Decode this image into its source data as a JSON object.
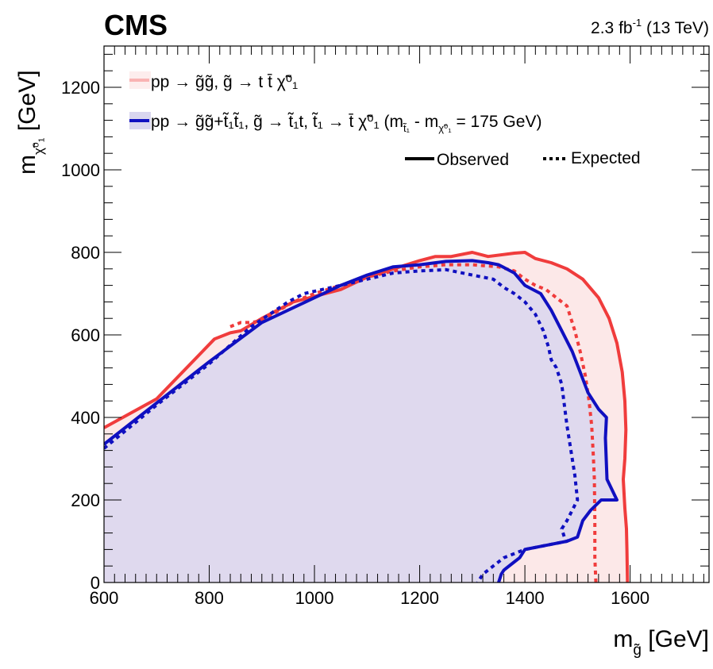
{
  "header": {
    "experiment": "CMS",
    "lumi_value": "2.3 fb",
    "lumi_exp": "-1",
    "energy": "(13 TeV)"
  },
  "axes": {
    "x_title": "m",
    "x_sub": "g̃",
    "x_unit": "[GeV]",
    "y_title": "m",
    "y_sub": "χ̃⁰₁",
    "y_unit": "[GeV]"
  },
  "legend": {
    "red_label": "pp → g̃g̃, g̃ → t t̄ χ̃⁰₁",
    "blue_label": "pp → g̃g̃+t̃₁t̃₁, g̃ → t̃₁t,  t̃₁ → t̄ χ̃⁰₁   (m",
    "blue_mass_a": "t̃₁",
    "blue_mass_mid": " - m",
    "blue_mass_b": "χ̃⁰₁",
    "blue_mass_end": " = 175 GeV)",
    "observed": "Observed",
    "expected": "Expected"
  },
  "chart_data": {
    "type": "line",
    "xlim": [
      600,
      1750
    ],
    "ylim": [
      0,
      1300
    ],
    "x_ticks": [
      600,
      800,
      1000,
      1200,
      1400,
      1600
    ],
    "y_ticks": [
      0,
      200,
      400,
      600,
      800,
      1000,
      1200
    ],
    "xlabel": "m_g̃ [GeV]",
    "ylabel": "m_χ̃⁰₁ [GeV]",
    "colors": {
      "red": "#f03c3c",
      "blue": "#1010c0",
      "red_fill": "#fce6e6",
      "blue_fill": "#d9d6ef"
    },
    "series": [
      {
        "name": "pp → g̃g̃, g̃ → t t̄ χ̃⁰₁",
        "kind": "observed",
        "color": "red",
        "points": [
          [
            600,
            375
          ],
          [
            700,
            445
          ],
          [
            810,
            590
          ],
          [
            840,
            605
          ],
          [
            860,
            610
          ],
          [
            900,
            640
          ],
          [
            960,
            680
          ],
          [
            1050,
            710
          ],
          [
            1100,
            740
          ],
          [
            1150,
            760
          ],
          [
            1200,
            780
          ],
          [
            1230,
            790
          ],
          [
            1260,
            790
          ],
          [
            1300,
            800
          ],
          [
            1330,
            790
          ],
          [
            1380,
            798
          ],
          [
            1400,
            800
          ],
          [
            1420,
            785
          ],
          [
            1450,
            775
          ],
          [
            1480,
            760
          ],
          [
            1510,
            735
          ],
          [
            1540,
            690
          ],
          [
            1560,
            640
          ],
          [
            1575,
            580
          ],
          [
            1585,
            510
          ],
          [
            1590,
            440
          ],
          [
            1592,
            370
          ],
          [
            1590,
            300
          ],
          [
            1587,
            250
          ],
          [
            1590,
            180
          ],
          [
            1593,
            130
          ],
          [
            1594,
            80
          ],
          [
            1595,
            0
          ]
        ]
      },
      {
        "name": "pp → g̃g̃, g̃ → t t̄ χ̃⁰₁",
        "kind": "expected",
        "color": "red",
        "points": [
          [
            840,
            620
          ],
          [
            860,
            630
          ],
          [
            880,
            630
          ],
          [
            900,
            635
          ],
          [
            960,
            680
          ],
          [
            1000,
            700
          ],
          [
            1050,
            720
          ],
          [
            1100,
            740
          ],
          [
            1150,
            755
          ],
          [
            1200,
            765
          ],
          [
            1250,
            770
          ],
          [
            1300,
            770
          ],
          [
            1350,
            765
          ],
          [
            1380,
            755
          ],
          [
            1400,
            735
          ],
          [
            1420,
            720
          ],
          [
            1440,
            710
          ],
          [
            1460,
            690
          ],
          [
            1480,
            670
          ],
          [
            1495,
            610
          ],
          [
            1505,
            560
          ],
          [
            1515,
            500
          ],
          [
            1522,
            440
          ],
          [
            1527,
            380
          ],
          [
            1530,
            310
          ],
          [
            1532,
            250
          ],
          [
            1533,
            150
          ],
          [
            1533,
            60
          ],
          [
            1535,
            0
          ]
        ]
      },
      {
        "name": "pp → g̃g̃+t̃₁t̃₁, g̃ → t̃₁t, t̃₁ → t̄ χ̃⁰₁ (m_t̃₁ - m_χ̃⁰₁ = 175 GeV)",
        "kind": "observed",
        "color": "blue",
        "points": [
          [
            600,
            335
          ],
          [
            700,
            435
          ],
          [
            800,
            535
          ],
          [
            900,
            630
          ],
          [
            1000,
            690
          ],
          [
            1050,
            720
          ],
          [
            1100,
            745
          ],
          [
            1150,
            765
          ],
          [
            1200,
            770
          ],
          [
            1250,
            778
          ],
          [
            1300,
            780
          ],
          [
            1330,
            775
          ],
          [
            1350,
            770
          ],
          [
            1380,
            750
          ],
          [
            1400,
            720
          ],
          [
            1430,
            700
          ],
          [
            1450,
            660
          ],
          [
            1470,
            610
          ],
          [
            1490,
            560
          ],
          [
            1505,
            510
          ],
          [
            1520,
            460
          ],
          [
            1540,
            420
          ],
          [
            1555,
            400
          ],
          [
            1553,
            350
          ],
          [
            1556,
            250
          ],
          [
            1575,
            200
          ],
          [
            1545,
            200
          ],
          [
            1525,
            175
          ],
          [
            1510,
            150
          ],
          [
            1500,
            110
          ],
          [
            1480,
            100
          ],
          [
            1440,
            90
          ],
          [
            1400,
            80
          ],
          [
            1390,
            60
          ],
          [
            1380,
            50
          ],
          [
            1360,
            30
          ],
          [
            1355,
            20
          ],
          [
            1350,
            0
          ]
        ]
      },
      {
        "name": "pp → g̃g̃+t̃₁t̃₁, g̃ → t̃₁t, t̃₁ → t̄ χ̃⁰₁ (m_t̃₁ - m_χ̃⁰₁ = 175 GeV)",
        "kind": "expected",
        "color": "blue",
        "points": [
          [
            600,
            325
          ],
          [
            700,
            430
          ],
          [
            800,
            530
          ],
          [
            880,
            620
          ],
          [
            950,
            680
          ],
          [
            980,
            700
          ],
          [
            1050,
            720
          ],
          [
            1100,
            735
          ],
          [
            1150,
            750
          ],
          [
            1200,
            755
          ],
          [
            1250,
            758
          ],
          [
            1300,
            745
          ],
          [
            1340,
            735
          ],
          [
            1360,
            715
          ],
          [
            1380,
            700
          ],
          [
            1400,
            680
          ],
          [
            1420,
            650
          ],
          [
            1435,
            610
          ],
          [
            1445,
            570
          ],
          [
            1450,
            540
          ],
          [
            1460,
            520
          ],
          [
            1470,
            480
          ],
          [
            1475,
            430
          ],
          [
            1480,
            380
          ],
          [
            1485,
            340
          ],
          [
            1490,
            300
          ],
          [
            1495,
            260
          ],
          [
            1500,
            200
          ],
          [
            1480,
            150
          ],
          [
            1470,
            130
          ],
          [
            1475,
            110
          ],
          [
            1480,
            100
          ],
          [
            1460,
            95
          ],
          [
            1420,
            85
          ],
          [
            1400,
            80
          ],
          [
            1380,
            70
          ],
          [
            1360,
            60
          ],
          [
            1340,
            40
          ],
          [
            1320,
            20
          ],
          [
            1310,
            0
          ]
        ]
      }
    ]
  }
}
